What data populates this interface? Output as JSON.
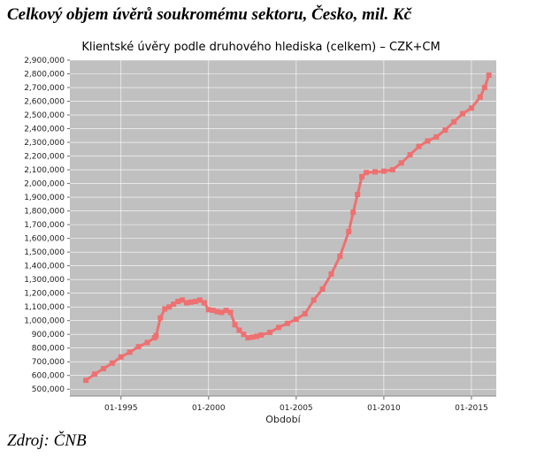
{
  "page": {
    "heading": "Celkový objem úvěrů soukromému sektoru, Česko, mil. Kč",
    "source": "Zdroj: ČNB"
  },
  "colors": {
    "plot_background": "#c0c0c0",
    "grid": "#ffffff",
    "series": "#ee7070"
  },
  "chart_data": {
    "type": "line",
    "title": "Klientské úvěry podle druhového hlediska (celkem) – CZK+CM",
    "xlabel": "Období",
    "ylabel": "",
    "x_ticks": [
      "01-1995",
      "01-2000",
      "01-2005",
      "01-2010",
      "01-2015"
    ],
    "y_ticks": [
      "500,000",
      "600,000",
      "700,000",
      "800,000",
      "900,000",
      "1,000,000",
      "1,100,000",
      "1,200,000",
      "1,300,000",
      "1,400,000",
      "1,500,000",
      "1,600,000",
      "1,700,000",
      "1,800,000",
      "1,900,000",
      "2,000,000",
      "2,100,000",
      "2,200,000",
      "2,300,000",
      "2,400,000",
      "2,500,000",
      "2,600,000",
      "2,700,000",
      "2,800,000",
      "2,900,000"
    ],
    "xlim": [
      "1992-02",
      "2016-06"
    ],
    "ylim": [
      450000,
      2900000
    ],
    "grid": true,
    "legend": "none",
    "marker": "square",
    "series": [
      {
        "x": [
          "1993-01",
          "1993-07",
          "1994-01",
          "1994-07",
          "1995-01",
          "1995-07",
          "1996-01",
          "1996-07",
          "1996-12",
          "1997-01",
          "1997-04",
          "1997-07",
          "1997-10",
          "1998-01",
          "1998-04",
          "1998-07",
          "1998-10",
          "1999-01",
          "1999-04",
          "1999-07",
          "1999-10",
          "2000-01",
          "2000-04",
          "2000-07",
          "2000-10",
          "2001-01",
          "2001-04",
          "2001-07",
          "2001-10",
          "2002-01",
          "2002-04",
          "2002-07",
          "2002-10",
          "2003-01",
          "2003-07",
          "2004-01",
          "2004-07",
          "2005-01",
          "2005-07",
          "2006-01",
          "2006-07",
          "2007-01",
          "2007-07",
          "2008-01",
          "2008-04",
          "2008-07",
          "2008-10",
          "2009-01",
          "2009-07",
          "2010-01",
          "2010-07",
          "2011-01",
          "2011-07",
          "2012-01",
          "2012-07",
          "2013-01",
          "2013-07",
          "2014-01",
          "2014-07",
          "2015-01",
          "2015-07",
          "2015-10",
          "2016-01"
        ],
        "values": [
          565000,
          610000,
          650000,
          690000,
          735000,
          770000,
          810000,
          840000,
          875000,
          890000,
          1020000,
          1085000,
          1100000,
          1120000,
          1140000,
          1150000,
          1130000,
          1135000,
          1140000,
          1150000,
          1130000,
          1080000,
          1075000,
          1065000,
          1060000,
          1075000,
          1060000,
          970000,
          930000,
          900000,
          875000,
          880000,
          885000,
          895000,
          915000,
          950000,
          980000,
          1010000,
          1050000,
          1150000,
          1230000,
          1340000,
          1470000,
          1650000,
          1790000,
          1920000,
          2050000,
          2080000,
          2085000,
          2090000,
          2100000,
          2150000,
          2210000,
          2270000,
          2310000,
          2340000,
          2390000,
          2450000,
          2510000,
          2550000,
          2630000,
          2700000,
          2790000
        ]
      }
    ]
  }
}
